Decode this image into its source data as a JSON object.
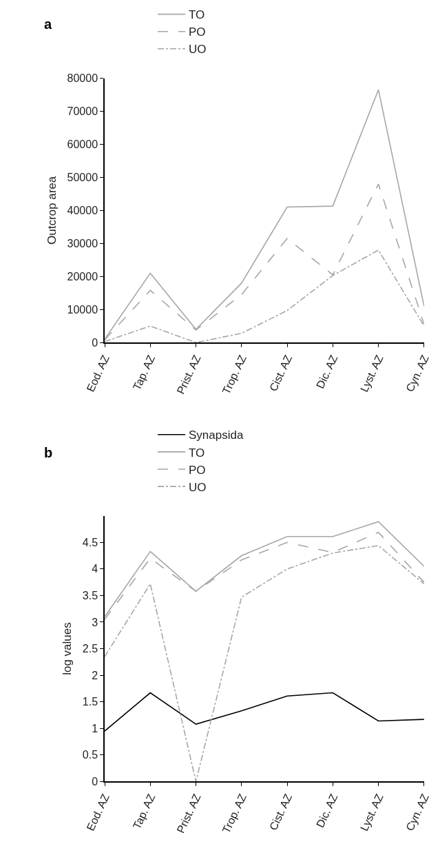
{
  "chart_data": [
    {
      "type": "line",
      "title": "a",
      "ylabel": "Outcrop area",
      "categories": [
        "Eod. AZ",
        "Tap. AZ",
        "Prist. AZ",
        "Trop. AZ",
        "Cist. AZ",
        "Dic. AZ",
        "Lyst. AZ",
        "Cyn. AZ"
      ],
      "ylim": [
        0,
        80000
      ],
      "yticks": [
        0,
        10000,
        20000,
        30000,
        40000,
        50000,
        60000,
        70000,
        80000
      ],
      "legend": "top left",
      "marker": "none",
      "series": [
        {
          "name": "TO",
          "color": "#a6a6a6",
          "line_style": "solid",
          "values": [
            1000,
            21000,
            4000,
            18000,
            41000,
            41300,
            76500,
            11000
          ]
        },
        {
          "name": "PO",
          "color": "#a6a6a6",
          "line_style": "dashed",
          "values": [
            800,
            15800,
            3800,
            14500,
            31500,
            20500,
            48000,
            5500
          ]
        },
        {
          "name": "UO",
          "color": "#a6a6a6",
          "line_style": "dotted",
          "values": [
            300,
            5000,
            0,
            2800,
            9700,
            20300,
            28000,
            5000
          ]
        }
      ]
    },
    {
      "type": "line",
      "title": "b",
      "ylabel": "log values",
      "categories": [
        "Eod. AZ",
        "Tap. AZ",
        "Prist. AZ",
        "Trop. AZ",
        "Cist. AZ",
        "Dic. AZ",
        "Lyst. AZ",
        "Cyn. AZ"
      ],
      "ylim": [
        0,
        5
      ],
      "yticks": [
        0,
        0.5,
        1,
        1.5,
        2,
        2.5,
        3,
        3.5,
        4,
        4.5
      ],
      "legend": "top left",
      "marker": "none",
      "series": [
        {
          "name": "Synapsida",
          "color": "#000000",
          "line_style": "solid",
          "values": [
            0.95,
            1.67,
            1.08,
            1.33,
            1.61,
            1.67,
            1.14,
            1.17
          ]
        },
        {
          "name": "TO",
          "color": "#a6a6a6",
          "line_style": "solid",
          "values": [
            3.1,
            4.33,
            3.58,
            4.25,
            4.61,
            4.61,
            4.89,
            4.05
          ]
        },
        {
          "name": "PO",
          "color": "#a6a6a6",
          "line_style": "dashed",
          "values": [
            3.05,
            4.2,
            3.58,
            4.17,
            4.5,
            4.31,
            4.69,
            3.75
          ]
        },
        {
          "name": "UO",
          "color": "#a6a6a6",
          "line_style": "dotted",
          "values": [
            2.35,
            3.72,
            0,
            3.47,
            4.0,
            4.3,
            4.44,
            3.72
          ]
        }
      ]
    }
  ]
}
